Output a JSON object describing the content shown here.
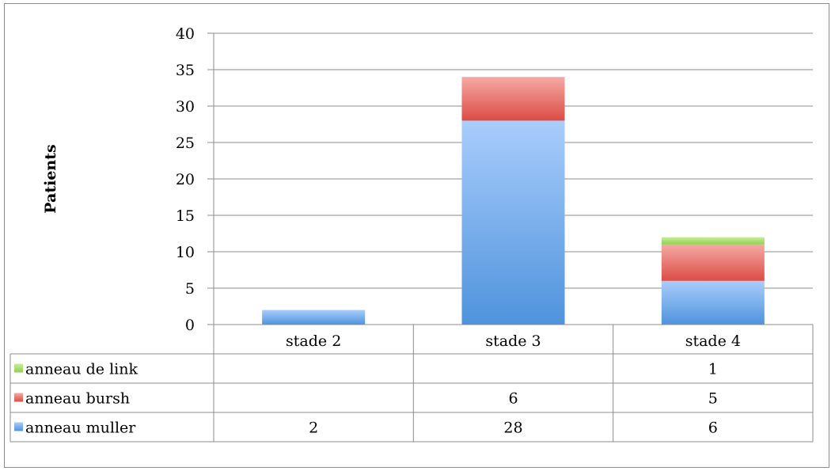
{
  "chart_data": {
    "type": "bar",
    "stacked": true,
    "categories": [
      "stade 2",
      "stade 3",
      "stade 4"
    ],
    "series": [
      {
        "name": "anneau muller",
        "values": [
          2,
          28,
          6
        ],
        "labels": [
          "2",
          "28",
          "6"
        ],
        "color": "#5b9bd5"
      },
      {
        "name": "anneau bursh",
        "values": [
          0,
          6,
          5
        ],
        "labels": [
          "",
          "6",
          "5"
        ],
        "color": "#e8504a"
      },
      {
        "name": "anneau de link",
        "values": [
          0,
          0,
          1
        ],
        "labels": [
          "",
          "",
          "1"
        ],
        "color": "#9bd35a"
      }
    ],
    "ylabel": "Patients",
    "xlabel": "",
    "title": "",
    "ylim": [
      0,
      40
    ],
    "yticks": [
      "0",
      "5",
      "10",
      "15",
      "20",
      "25",
      "30",
      "35",
      "40"
    ],
    "grid": true,
    "legend": "data-table"
  }
}
